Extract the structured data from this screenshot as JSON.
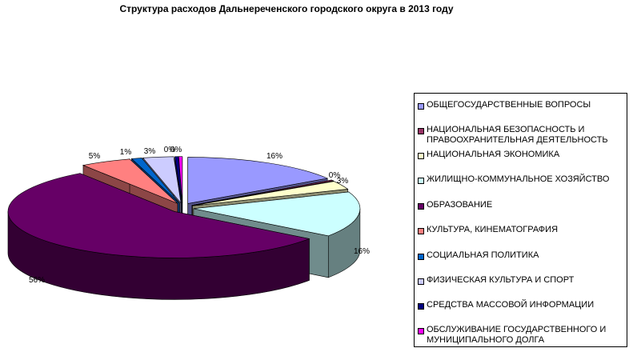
{
  "chart_data": {
    "type": "pie",
    "title": "Структура расходов Дальнереченского городского округа в 2013 году",
    "categories": [
      "ОБЩЕГОСУДАРСТВЕННЫЕ ВОПРОСЫ",
      "НАЦИОНАЛЬНАЯ БЕЗОПАСНОСТЬ И ПРАВООХРАНИТЕЛЬНАЯ ДЕЯТЕЛЬНОСТЬ",
      "НАЦИОНАЛЬНАЯ ЭКОНОМИКА",
      "ЖИЛИЩНО-КОММУНАЛЬНОЕ ХОЗЯЙСТВО",
      "ОБРАЗОВАНИЕ",
      "КУЛЬТУРА, КИНЕМАТОГРАФИЯ",
      "СОЦИАЛЬНАЯ ПОЛИТИКА",
      "ФИЗИЧЕСКАЯ КУЛЬТУРА И СПОРТ",
      "СРЕДСТВА МАССОВОЙ ИНФОРМАЦИИ",
      "ОБСЛУЖИВАНИЕ ГОСУДАРСТВЕННОГО И МУНИЦИПАЛЬНОГО ДОЛГА"
    ],
    "values": [
      16,
      0,
      3,
      16,
      56,
      5,
      1,
      3,
      0,
      0
    ],
    "data_labels": [
      "16%",
      "0%",
      "3%",
      "16%",
      "56%",
      "5%",
      "1%",
      "3%",
      "0%",
      "0%"
    ],
    "colors": [
      "#9999ff",
      "#993366",
      "#ffffcc",
      "#ccffff",
      "#660066",
      "#ff8080",
      "#0066cc",
      "#ccccff",
      "#000080",
      "#ff00ff"
    ],
    "style": "3d-exploded",
    "legend_position": "right"
  }
}
